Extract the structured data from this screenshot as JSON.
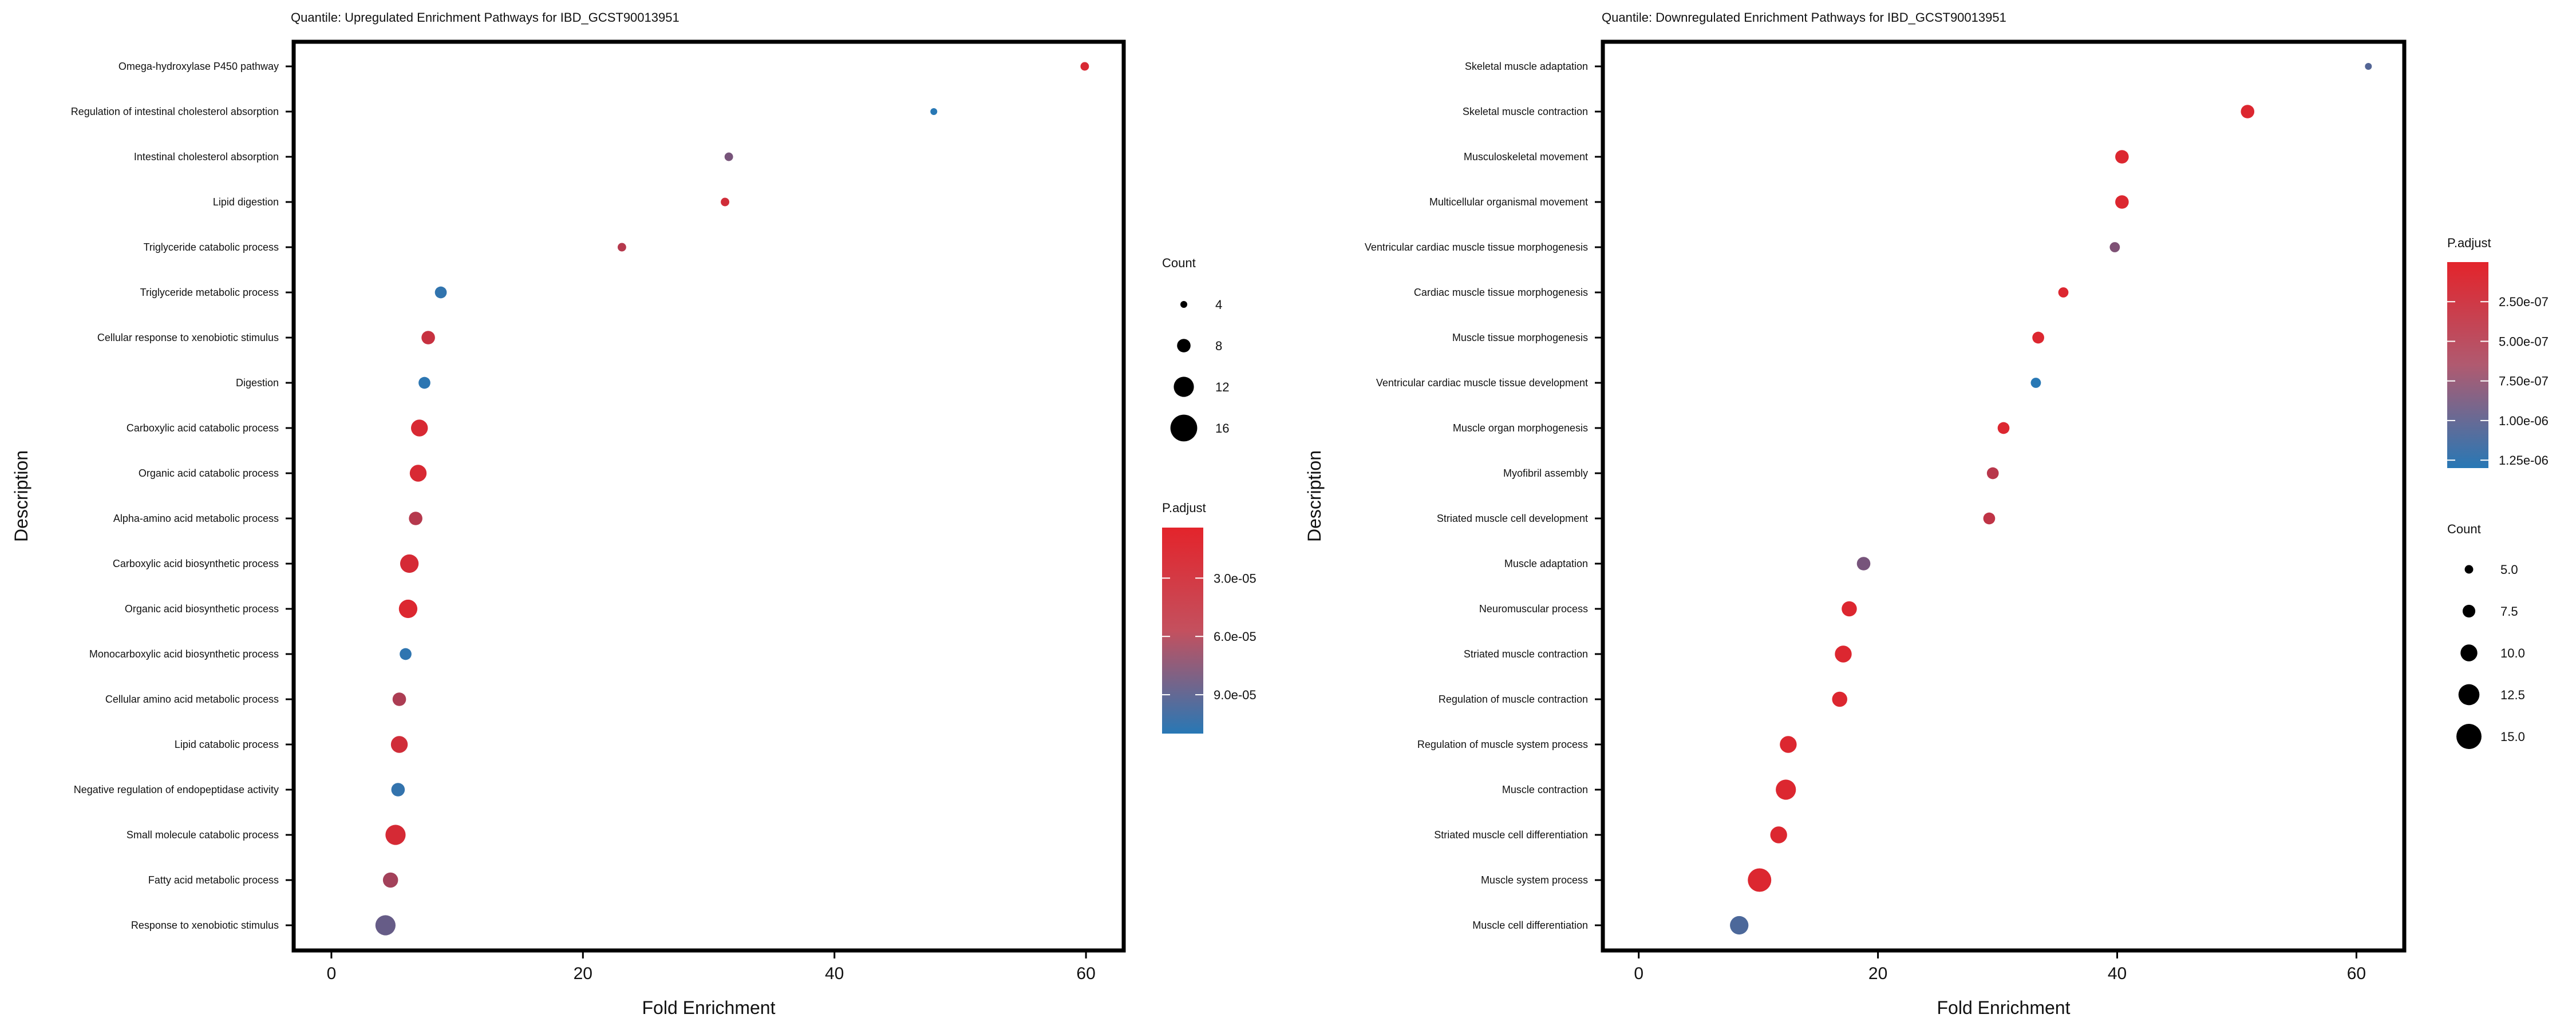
{
  "chart_data": [
    {
      "type": "scatter",
      "title": "Quantile: Upregulated Enrichment Pathways for IBD_GCST90013951",
      "xlabel": "Fold Enrichment",
      "ylabel": "Description",
      "xlim": [
        -3,
        63
      ],
      "xticks": [
        "0",
        "20",
        "40",
        "60"
      ],
      "xtick_values": [
        0,
        20,
        40,
        60
      ],
      "colors": {
        "low": "#e3242b",
        "high": "#2878b5"
      },
      "size_legend": {
        "title": "Count",
        "labels": [
          "4",
          "8",
          "12",
          "16"
        ],
        "values": [
          4,
          8,
          12,
          16
        ]
      },
      "color_legend": {
        "title": "P.adjust",
        "labels": [
          "3.0e-05",
          "6.0e-05",
          "9.0e-05"
        ],
        "values": [
          3e-05,
          6e-05,
          9e-05
        ],
        "range": [
          4e-06,
          0.00011
        ],
        "position": "below"
      },
      "categories": [
        "Omega-hydroxylase P450 pathway",
        "Regulation of intestinal cholesterol absorption",
        "Intestinal cholesterol absorption",
        "Lipid digestion",
        "Triglyceride catabolic process",
        "Triglyceride metabolic process",
        "Cellular response to xenobiotic stimulus",
        "Digestion",
        "Carboxylic acid catabolic process",
        "Organic acid catabolic process",
        "Alpha-amino acid metabolic process",
        "Carboxylic acid biosynthetic process",
        "Organic acid biosynthetic process",
        "Monocarboxylic acid biosynthetic process",
        "Cellular amino acid metabolic process",
        "Lipid catabolic process",
        "Negative regulation of endopeptidase activity",
        "Small molecule catabolic process",
        "Fatty acid metabolic process",
        "Response to xenobiotic stimulus"
      ],
      "x": [
        59.9,
        47.9,
        31.6,
        31.3,
        23.1,
        8.7,
        7.7,
        7.4,
        7.0,
        6.9,
        6.7,
        6.2,
        6.1,
        5.9,
        5.4,
        5.4,
        5.3,
        5.1,
        4.7,
        4.3
      ],
      "count": [
        5,
        4,
        5,
        5,
        5,
        7,
        8,
        7,
        10,
        10,
        8,
        11,
        11,
        7,
        8,
        10,
        8,
        12,
        9,
        12
      ],
      "p_adjust": [
        1e-05,
        0.00011,
        6.5e-05,
        1.5e-05,
        3e-05,
        0.000105,
        2e-05,
        0.000108,
        1e-05,
        1e-05,
        3e-05,
        1.2e-05,
        8e-06,
        0.000106,
        3.5e-05,
        1.5e-05,
        0.000104,
        1.2e-05,
        4e-05,
        7.5e-05
      ]
    },
    {
      "type": "scatter",
      "title": "Quantile: Downregulated Enrichment Pathways for IBD_GCST90013951",
      "xlabel": "Fold Enrichment",
      "ylabel": "Description",
      "xlim": [
        -3,
        64
      ],
      "xticks": [
        "0",
        "20",
        "40",
        "60"
      ],
      "xtick_values": [
        0,
        20,
        40,
        60
      ],
      "colors": {
        "low": "#e3242b",
        "high": "#2878b5"
      },
      "color_legend": {
        "title": "P.adjust",
        "labels": [
          "2.50e-07",
          "5.00e-07",
          "7.50e-07",
          "1.00e-06",
          "1.25e-06"
        ],
        "values": [
          2.5e-07,
          5e-07,
          7.5e-07,
          1e-06,
          1.25e-06
        ],
        "range": [
          0,
          1.3e-06
        ],
        "position": "top"
      },
      "size_legend": {
        "title": "Count",
        "labels": [
          "5.0",
          "7.5",
          "10.0",
          "12.5",
          "15.0"
        ],
        "values": [
          5,
          7.5,
          10,
          12.5,
          15
        ]
      },
      "categories": [
        "Skeletal muscle adaptation",
        "Skeletal muscle contraction",
        "Musculoskeletal movement",
        "Multicellular organismal movement",
        "Ventricular cardiac muscle tissue morphogenesis",
        "Cardiac muscle tissue morphogenesis",
        "Muscle tissue morphogenesis",
        "Ventricular cardiac muscle tissue development",
        "Muscle organ morphogenesis",
        "Myofibril assembly",
        "Striated muscle cell development",
        "Muscle adaptation",
        "Neuromuscular process",
        "Striated muscle contraction",
        "Regulation of muscle contraction",
        "Regulation of muscle system process",
        "Muscle contraction",
        "Striated muscle cell differentiation",
        "Muscle system process",
        "Muscle cell differentiation"
      ],
      "x": [
        61.0,
        50.9,
        40.4,
        40.4,
        39.8,
        35.5,
        33.4,
        33.2,
        30.5,
        29.6,
        29.3,
        18.8,
        17.6,
        17.1,
        16.8,
        12.5,
        12.3,
        11.7,
        10.1,
        8.4
      ],
      "count": [
        4,
        8,
        8,
        8,
        6,
        6,
        7,
        6,
        7,
        7,
        7,
        8,
        9,
        10,
        9,
        10,
        12,
        10,
        14,
        11
      ],
      "p_adjust": [
        1e-06,
        5e-08,
        5e-08,
        5e-08,
        7e-07,
        5e-08,
        5e-08,
        1.3e-06,
        5e-08,
        3e-07,
        2.5e-07,
        7.5e-07,
        5e-08,
        5e-08,
        5e-08,
        5e-08,
        5e-08,
        5e-08,
        5e-08,
        1.05e-06
      ]
    }
  ]
}
